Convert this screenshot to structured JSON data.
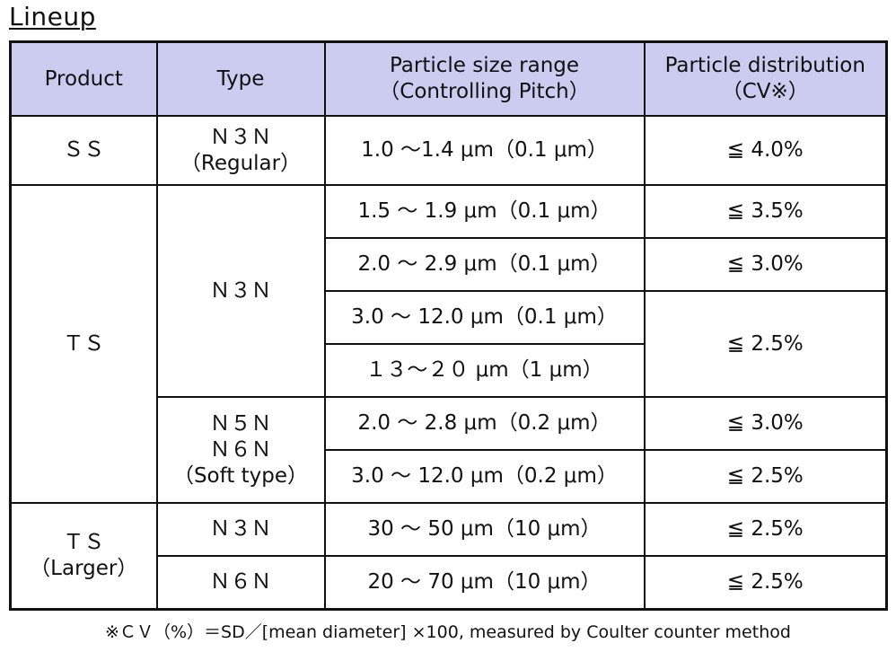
{
  "title": "Lineup",
  "headers": {
    "product": "Product",
    "type": "Type",
    "size_range_line1": "Particle size range",
    "size_range_line2": "（Controlling Pitch）",
    "distribution_line1": "Particle distribution",
    "distribution_line2": "（CV※）"
  },
  "rows": {
    "ss": {
      "product": "ＳＳ",
      "type_line1": "Ｎ３Ｎ",
      "type_line2": "（Regular）",
      "range": "1.0 ～1.4 μm（0.1 μm）",
      "cv": "≦ 4.0%"
    },
    "ts": {
      "product": "ＴＳ",
      "type_n3n": "Ｎ３Ｎ",
      "type_n5n": "Ｎ５Ｎ",
      "type_n6n": "Ｎ６Ｎ",
      "type_soft": "（Soft type）",
      "r1": {
        "range": "1.5 ～ 1.9 μm（0.1 μm）",
        "cv": "≦ 3.5%"
      },
      "r2": {
        "range": "2.0 ～ 2.9 μm（0.1 μm）",
        "cv": "≦ 3.0%"
      },
      "r3": {
        "range": "3.0 ～ 12.0 μm（0.1 μm）"
      },
      "r4": {
        "range": "１３～２０ μm（1 μm）"
      },
      "r34_cv": "≦ 2.5%",
      "r5": {
        "range": "2.0 ～ 2.8 μm（0.2 μm）",
        "cv": "≦ 3.0%"
      },
      "r6": {
        "range": "3.0 ～ 12.0 μm（0.2 μm）",
        "cv": "≦ 2.5%"
      }
    },
    "ts_larger": {
      "product_line1": "ＴＳ",
      "product_line2": "（Larger）",
      "r1": {
        "type": "Ｎ３Ｎ",
        "range": "30 ～ 50 μm（10 μm）",
        "cv": "≦ 2.5%"
      },
      "r2": {
        "type": "Ｎ６Ｎ",
        "range": "20 ～ 70 μm（10 μm）",
        "cv": "≦ 2.5%"
      }
    }
  },
  "footnote": "※ＣＶ（%）＝SD／[mean diameter] ×100, measured by Coulter counter method"
}
